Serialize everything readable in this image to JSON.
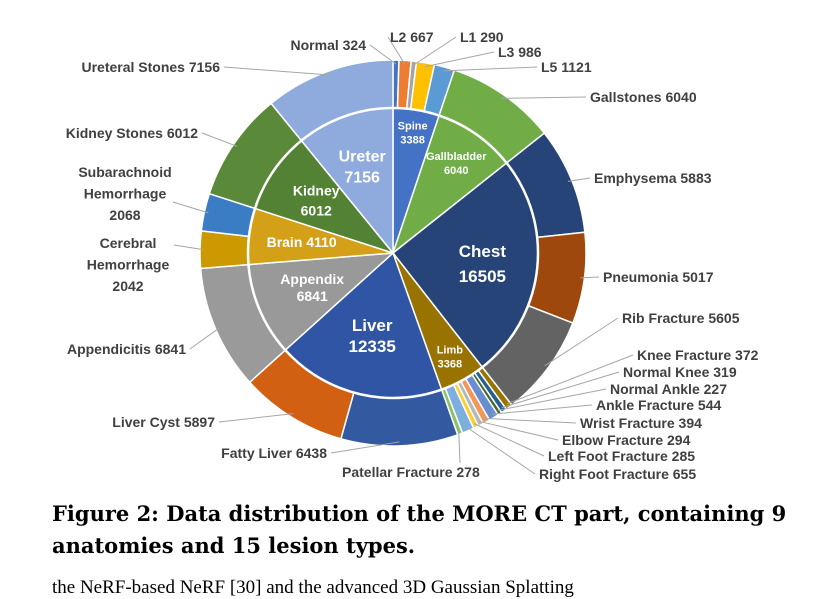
{
  "chart_data": {
    "type": "sunburst",
    "title": "",
    "start": "top, clockwise",
    "inner": [
      {
        "name": "Spine",
        "value": 3388,
        "color": "#4472C4"
      },
      {
        "name": "Gallbladder",
        "value": 6040,
        "color": "#70AD47"
      },
      {
        "name": "Chest",
        "value": 16505,
        "color": "#264478"
      },
      {
        "name": "Limb",
        "value": 3368,
        "color": "#997300"
      },
      {
        "name": "Liver",
        "value": 12335,
        "color": "#2F55A4"
      },
      {
        "name": "Appendix",
        "value": 6841,
        "color": "#999999"
      },
      {
        "name": "Brain",
        "value": 4110,
        "color": "#D4A017"
      },
      {
        "name": "Kidney",
        "value": 6012,
        "color": "#548235"
      },
      {
        "name": "Ureter",
        "value": 7156,
        "color": "#8FAADC"
      }
    ],
    "outer": [
      {
        "name": "Normal",
        "value": 324,
        "parent": "Spine",
        "color": "#4472C4"
      },
      {
        "name": "L2",
        "value": 667,
        "parent": "Spine",
        "color": "#ED7D31"
      },
      {
        "name": "L1",
        "value": 290,
        "parent": "Spine",
        "color": "#A5A5A5"
      },
      {
        "name": "L3",
        "value": 986,
        "parent": "Spine",
        "color": "#FFC000"
      },
      {
        "name": "L5",
        "value": 1121,
        "parent": "Spine",
        "color": "#5B9BD5"
      },
      {
        "name": "Gallstones",
        "value": 6040,
        "parent": "Gallbladder",
        "color": "#70AD47"
      },
      {
        "name": "Emphysema",
        "value": 5883,
        "parent": "Chest",
        "color": "#264478"
      },
      {
        "name": "Pneumonia",
        "value": 5017,
        "parent": "Chest",
        "color": "#9E480E"
      },
      {
        "name": "Rib Fracture",
        "value": 5605,
        "parent": "Chest",
        "color": "#636363"
      },
      {
        "name": "Knee Fracture",
        "value": 372,
        "parent": "Limb",
        "color": "#997300"
      },
      {
        "name": "Normal Knee",
        "value": 319,
        "parent": "Limb",
        "color": "#255E91"
      },
      {
        "name": "Normal Ankle",
        "value": 227,
        "parent": "Limb",
        "color": "#43682B"
      },
      {
        "name": "Ankle Fracture",
        "value": 544,
        "parent": "Limb",
        "color": "#698ED0"
      },
      {
        "name": "Wrist Fracture",
        "value": 394,
        "parent": "Limb",
        "color": "#F1975A"
      },
      {
        "name": "Elbow Fracture",
        "value": 294,
        "parent": "Limb",
        "color": "#B7B7B7"
      },
      {
        "name": "Left Foot Fracture",
        "value": 285,
        "parent": "Limb",
        "color": "#FFCD33"
      },
      {
        "name": "Right Foot Fracture",
        "value": 655,
        "parent": "Limb",
        "color": "#7CAFDD"
      },
      {
        "name": "Patellar Fracture",
        "value": 278,
        "parent": "Limb",
        "color": "#8CC168"
      },
      {
        "name": "Fatty Liver",
        "value": 6438,
        "parent": "Liver",
        "color": "#335AA1"
      },
      {
        "name": "Liver Cyst",
        "value": 5897,
        "parent": "Liver",
        "color": "#D26012"
      },
      {
        "name": "Appendicitis",
        "value": 6841,
        "parent": "Appendix",
        "color": "#9A9A9A"
      },
      {
        "name": "Cerebral Hemorrhage",
        "value": 2042,
        "parent": "Brain",
        "color": "#CC9A00"
      },
      {
        "name": "Subarachnoid Hemorrhage",
        "value": 2068,
        "parent": "Brain",
        "color": "#3B7DC4"
      },
      {
        "name": "Kidney Stones",
        "value": 6012,
        "parent": "Kidney",
        "color": "#5A8A39"
      },
      {
        "name": "Ureteral Stones",
        "value": 7156,
        "parent": "Ureter",
        "color": "#8FAADC"
      }
    ]
  },
  "caption": "Figure 2: Data distribution of the MORE CT part, containing 9 anatomies and 15 lesion types.",
  "body_text_partial": "the NeRF-based NeRF [30] and the advanced 3D Gaussian Splatting"
}
